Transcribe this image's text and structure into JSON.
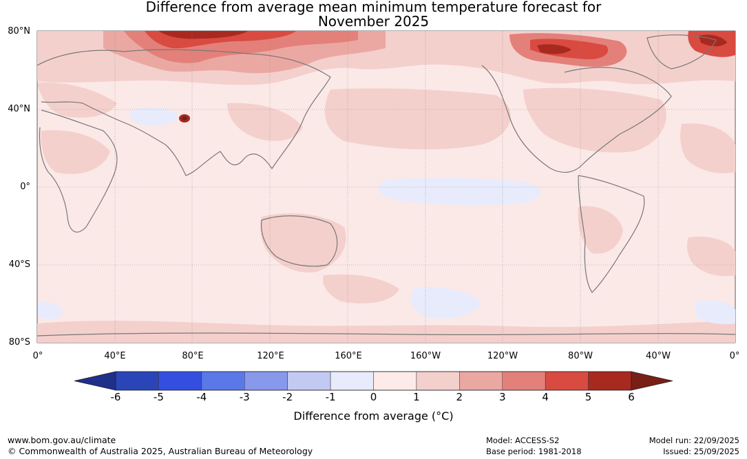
{
  "title": {
    "line1": "Difference from average mean minimum temperature forecast for",
    "line2": "November 2025"
  },
  "map": {
    "lat_labels": [
      "80°N",
      "40°N",
      "0°",
      "40°S",
      "80°S"
    ],
    "lon_labels": [
      "0°",
      "40°E",
      "80°E",
      "120°E",
      "160°E",
      "160°W",
      "120°W",
      "80°W",
      "40°W",
      "0°"
    ],
    "colors": {
      "background": "#fbe9e8",
      "coast": "#777777",
      "grid": "#888888"
    }
  },
  "colorbar": {
    "ticks": [
      "-6",
      "-5",
      "-4",
      "-3",
      "-2",
      "-1",
      "0",
      "1",
      "2",
      "3",
      "4",
      "5",
      "6"
    ],
    "label": "Difference from average (°C)",
    "colors": [
      "#1f2f8a",
      "#2a45b8",
      "#344fe0",
      "#5a78e8",
      "#8898ea",
      "#c2c9f2",
      "#e8ebfb",
      "#fcebe9",
      "#f4d0cd",
      "#eba8a3",
      "#e3807a",
      "#d94a40",
      "#a8291f",
      "#7a1f15"
    ]
  },
  "footer": {
    "website": "www.bom.gov.au/climate",
    "copyright": "© Commonwealth of Australia 2025, Australian Bureau of Meteorology",
    "model": "Model: ACCESS-S2",
    "base_period": "Base period: 1981-2018",
    "model_run": "Model run: 22/09/2025",
    "issued": "Issued: 25/09/2025"
  }
}
